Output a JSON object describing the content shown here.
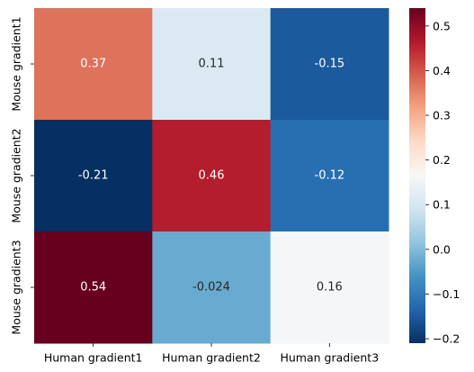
{
  "chart_data": {
    "type": "heatmap",
    "rows": [
      "Mouse gradient1",
      "Mouse gradient2",
      "Mouse gradient3"
    ],
    "columns": [
      "Human gradient1",
      "Human gradient2",
      "Human gradient3"
    ],
    "values": [
      [
        0.37,
        0.11,
        -0.15
      ],
      [
        -0.21,
        0.46,
        -0.12
      ],
      [
        0.54,
        -0.024,
        0.16
      ]
    ],
    "cell_labels": [
      [
        "0.37",
        "0.11",
        "-0.15"
      ],
      [
        "-0.21",
        "0.46",
        "-0.12"
      ],
      [
        "0.54",
        "-0.024",
        "0.16"
      ]
    ],
    "colormap": "RdBu_r",
    "color_range": [
      -0.21,
      0.54
    ],
    "colorbar_ticks": [
      "0.5",
      "0.4",
      "0.3",
      "0.2",
      "0.1",
      "0.0",
      "−0.1",
      "−0.2"
    ],
    "colorbar_tick_values": [
      0.5,
      0.4,
      0.3,
      0.2,
      0.1,
      0.0,
      -0.1,
      -0.2
    ]
  }
}
